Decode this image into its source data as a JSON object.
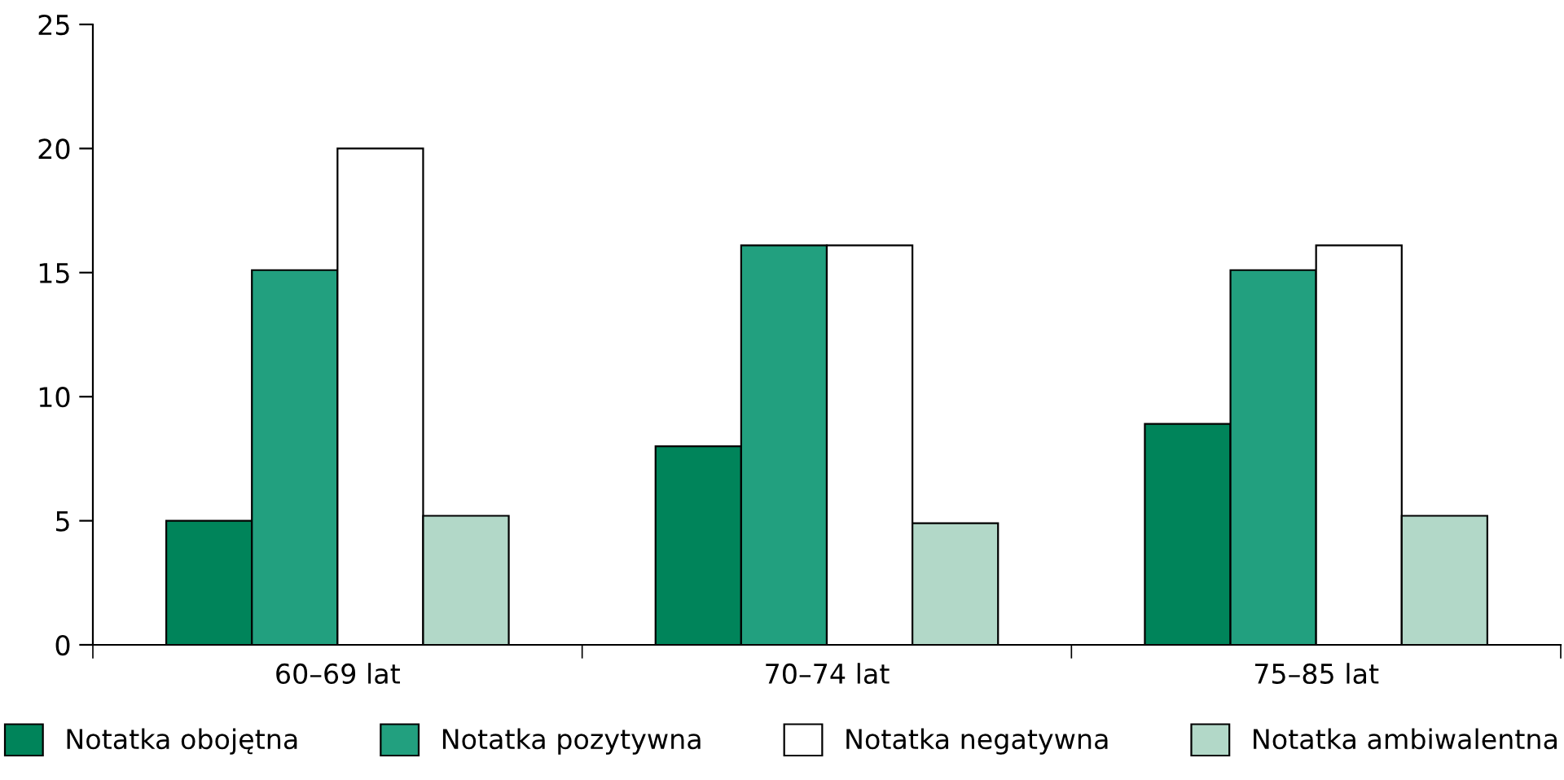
{
  "chart_data": {
    "type": "bar",
    "categories": [
      "60–69 lat",
      "70–74 lat",
      "75–85 lat"
    ],
    "series": [
      {
        "name": "Notatka obojętna",
        "color": "#00845a",
        "values": [
          5.0,
          8.0,
          8.9
        ]
      },
      {
        "name": "Notatka pozytywna",
        "color": "#22a07f",
        "values": [
          15.1,
          16.1,
          15.1
        ]
      },
      {
        "name": "Notatka negatywna",
        "color": "#ffffff",
        "values": [
          20.0,
          16.1,
          16.1
        ]
      },
      {
        "name": "Notatka ambiwalentna",
        "color": "#b2d8c8",
        "values": [
          5.2,
          4.9,
          5.2
        ]
      }
    ],
    "ylim": [
      0,
      25
    ],
    "yticks": [
      0,
      5,
      10,
      15,
      20,
      25
    ],
    "grid": false,
    "legend": "bottom"
  }
}
